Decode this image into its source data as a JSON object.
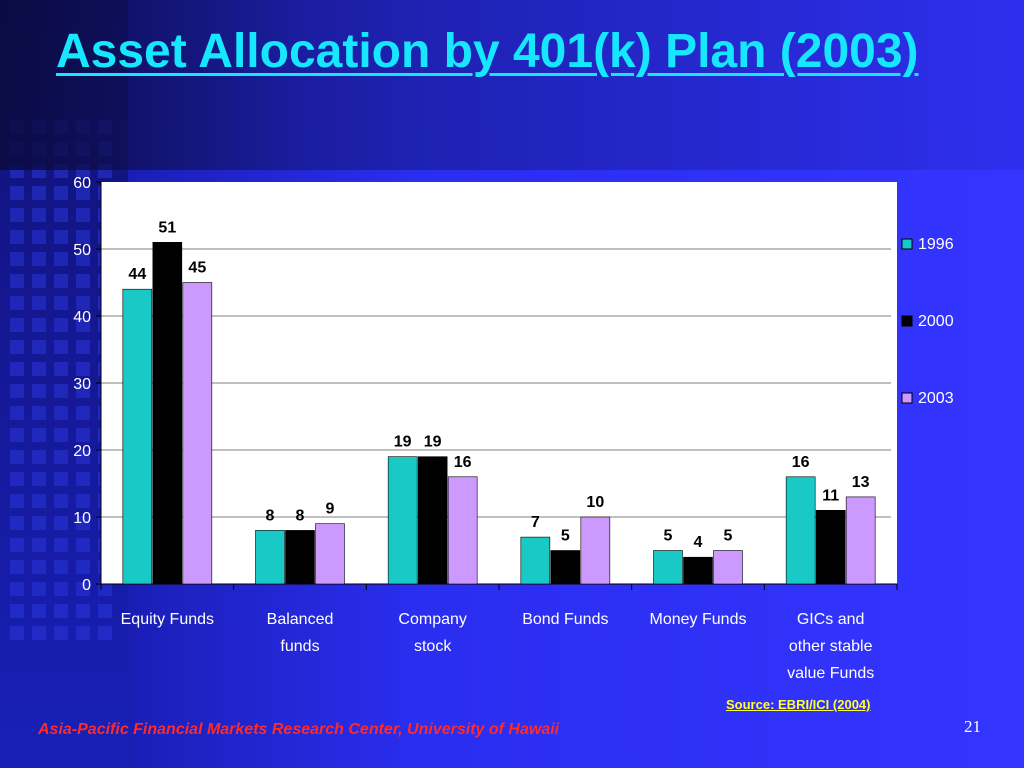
{
  "slide": {
    "title": "Asset Allocation by 401(k) Plan (2003)",
    "source": "Source:  EBRI/ICI (2004)",
    "footer": "Asia-Pacific Financial Markets Research Center, University of Hawaii",
    "page_number": "21"
  },
  "colors": {
    "series_1996": "#19c9c6",
    "series_2000": "#000000",
    "series_2003": "#cc99ff",
    "title": "#17e6ff",
    "source": "#ffff33",
    "footer": "#ff2a2a"
  },
  "chart_data": {
    "type": "bar",
    "categories": [
      [
        "Equity Funds"
      ],
      [
        "Balanced",
        "funds"
      ],
      [
        "Company",
        "stock"
      ],
      [
        "Bond Funds"
      ],
      [
        "Money Funds"
      ],
      [
        "GICs and",
        "other stable",
        "value Funds"
      ]
    ],
    "series": [
      {
        "name": "1996",
        "values": [
          44,
          8,
          19,
          7,
          5,
          16
        ]
      },
      {
        "name": "2000",
        "values": [
          51,
          8,
          19,
          5,
          4,
          11
        ]
      },
      {
        "name": "2003",
        "values": [
          45,
          9,
          16,
          10,
          5,
          13
        ]
      }
    ],
    "ylim": [
      0,
      60
    ],
    "yticks": [
      0,
      10,
      20,
      30,
      40,
      50,
      60
    ],
    "grid": true,
    "legend": "right"
  }
}
